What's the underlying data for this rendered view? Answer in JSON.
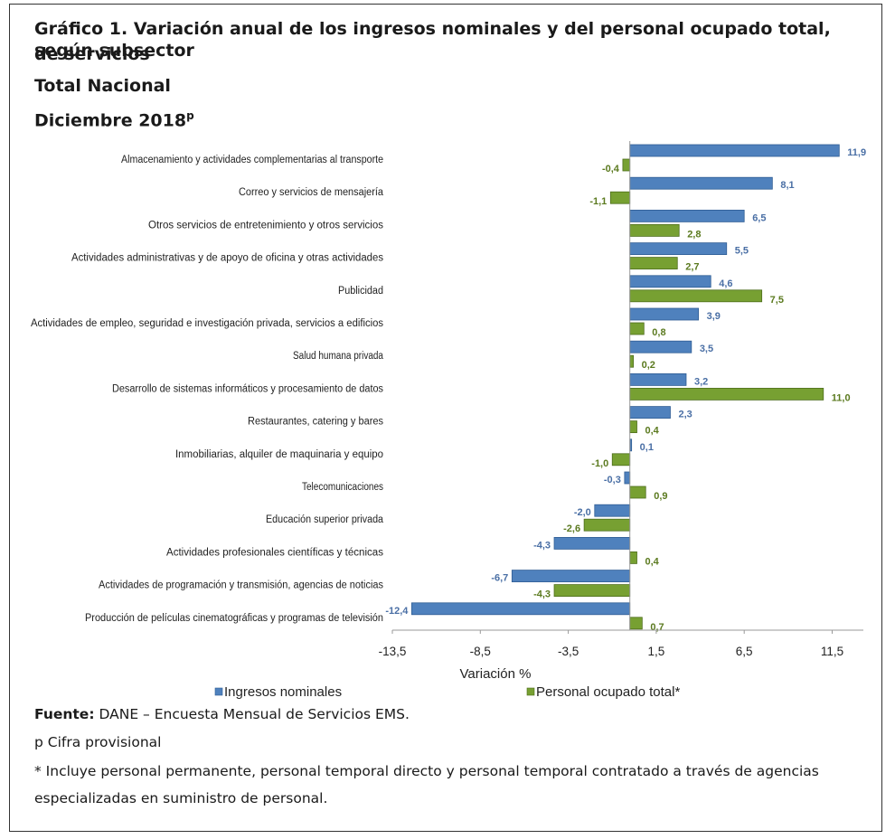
{
  "header": {
    "title_line1": "Gráfico 1. Variación anual de los ingresos nominales y del personal ocupado total, según subsector",
    "title_line2": "de servicios",
    "subtitle1": "Total Nacional",
    "subtitle2": "Diciembre 2018",
    "subtitle2_sup": "p"
  },
  "colors": {
    "ingresos": "#4f81bd",
    "personal": "#77a032",
    "label_ingresos": "#4a6fa5",
    "label_personal": "#5b7a1f"
  },
  "chart_data": {
    "type": "bar",
    "orientation": "horizontal",
    "categories": [
      "Almacenamiento y actividades complementarias al transporte",
      "Correo y servicios de mensajería",
      "Otros servicios de entretenimiento y otros servicios",
      "Actividades administrativas y de apoyo de oficina y otras actividades",
      "Publicidad",
      "Actividades de empleo, seguridad e investigación privada, servicios a edificios",
      "Salud humana privada",
      "Desarrollo de sistemas informáticos y procesamiento de datos",
      "Restaurantes, catering y bares",
      "Inmobiliarias, alquiler de maquinaria y equipo",
      "Telecomunicaciones",
      "Educación superior privada",
      "Actividades profesionales científicas y técnicas",
      "Actividades de programación y transmisión, agencias de noticias",
      "Producción de películas cinematográficas y programas de televisión"
    ],
    "series": [
      {
        "name": "Ingresos nominales",
        "values": [
          11.9,
          8.1,
          6.5,
          5.5,
          4.6,
          3.9,
          3.5,
          3.2,
          2.3,
          0.1,
          -0.3,
          -2.0,
          -4.3,
          -6.7,
          -12.4
        ],
        "labels": [
          "11,9",
          "8,1",
          "6,5",
          "5,5",
          "4,6",
          "3,9",
          "3,5",
          "3,2",
          "2,3",
          "0,1",
          "-0,3",
          "-2,0",
          "-4,3",
          "-6,7",
          "-12,4"
        ]
      },
      {
        "name": "Personal ocupado total*",
        "values": [
          -0.4,
          -1.1,
          2.8,
          2.7,
          7.5,
          0.8,
          0.2,
          11.0,
          0.4,
          -1.0,
          0.9,
          -2.6,
          0.4,
          -4.3,
          0.7
        ],
        "labels": [
          "-0,4",
          "-1,1",
          "2,8",
          "2,7",
          "7,5",
          "0,8",
          "0,2",
          "11,0",
          "0,4",
          "-1,0",
          "0,9",
          "-2,6",
          "0,4",
          "-4,3",
          "0,7"
        ]
      }
    ],
    "xticks": [
      -13.5,
      -8.5,
      -3.5,
      1.5,
      6.5,
      11.5
    ],
    "xtick_labels": [
      "-13,5",
      "-8,5",
      "-3,5",
      "1,5",
      "6,5",
      "11,5"
    ],
    "xlim": [
      -13.5,
      13.0
    ],
    "xlabel": "Variación %",
    "legend": [
      "Ingresos nominales",
      "Personal ocupado total*"
    ],
    "legend_position": "bottom",
    "grid": false
  },
  "footer": {
    "fuente_label": "Fuente:",
    "fuente_text": " DANE – Encuesta Mensual de Servicios EMS.",
    "note_p": "p Cifra provisional",
    "note_star_line1": "* Incluye personal permanente, personal temporal directo y personal temporal contratado a través de agencias",
    "note_star_line2": "especializadas en suministro de personal."
  }
}
